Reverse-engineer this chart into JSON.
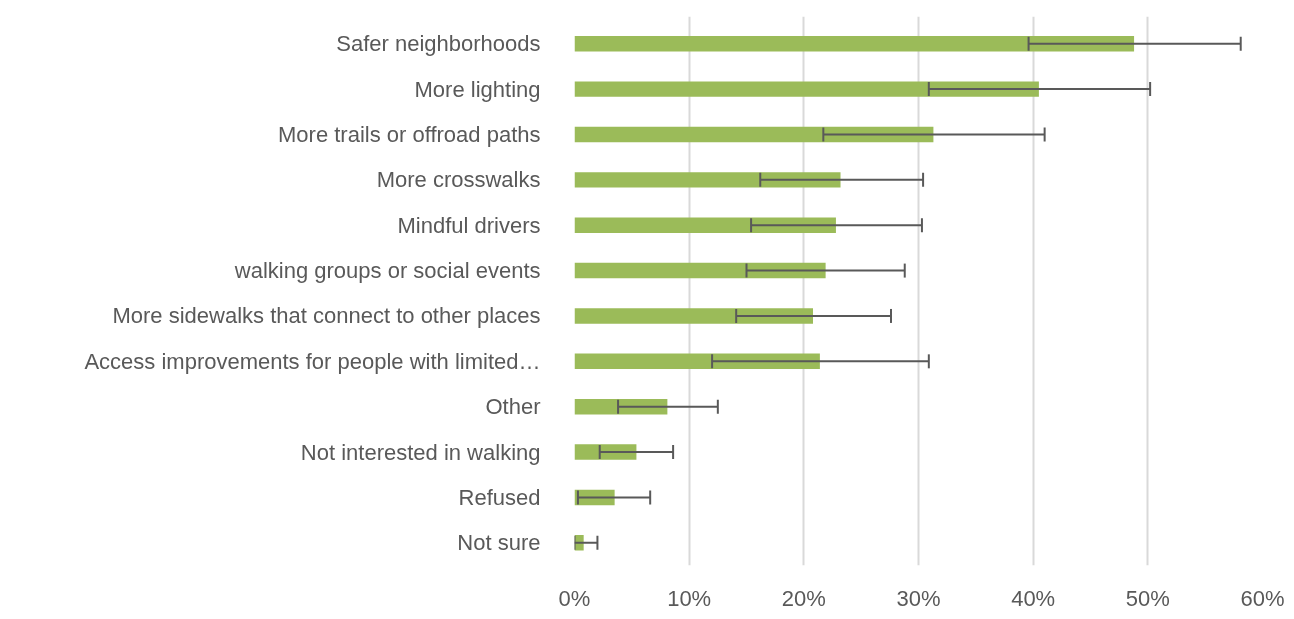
{
  "chart_data": {
    "type": "bar",
    "orientation": "horizontal",
    "categories": [
      "Safer neighborhoods",
      "More lighting",
      "More trails or offroad paths",
      "More crosswalks",
      "Mindful drivers",
      "walking groups or social events",
      "More sidewalks that connect to other places",
      "Access improvements for people with limited…",
      "Other",
      "Not interested in walking",
      "Refused",
      "Not sure"
    ],
    "values": [
      48.8,
      40.5,
      31.3,
      23.2,
      22.8,
      21.9,
      20.8,
      21.4,
      8.1,
      5.4,
      3.5,
      0.8
    ],
    "errors": [
      [
        39.6,
        58.1
      ],
      [
        30.9,
        50.2
      ],
      [
        21.7,
        41.0
      ],
      [
        16.2,
        30.4
      ],
      [
        15.4,
        30.3
      ],
      [
        15.0,
        28.8
      ],
      [
        14.1,
        27.6
      ],
      [
        12.0,
        30.9
      ],
      [
        3.8,
        12.5
      ],
      [
        2.2,
        8.6
      ],
      [
        0.3,
        6.6
      ],
      [
        0.0,
        2.0
      ]
    ],
    "color": "#9bbb59",
    "xlim": [
      0,
      60
    ],
    "xticks": [
      {
        "value": 0,
        "label": "0%"
      },
      {
        "value": 10,
        "label": "10%"
      },
      {
        "value": 20,
        "label": "20%"
      },
      {
        "value": 30,
        "label": "30%"
      },
      {
        "value": 40,
        "label": "40%"
      },
      {
        "value": 50,
        "label": "50%"
      },
      {
        "value": 60,
        "label": "60%"
      }
    ],
    "grid": "x"
  }
}
